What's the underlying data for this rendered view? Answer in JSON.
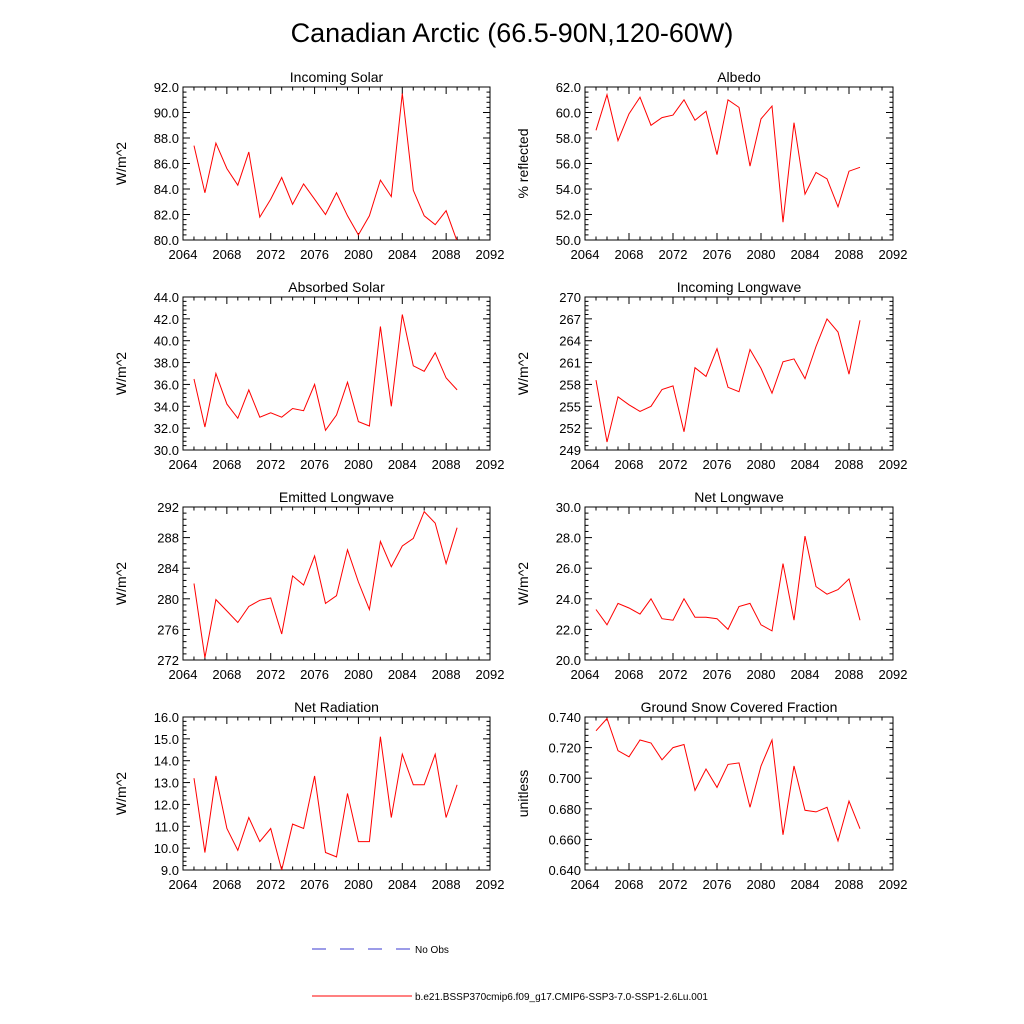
{
  "title": "Canadian Arctic (66.5-90N,120-60W)",
  "colors": {
    "model": "#ff0000",
    "obs": "#3a3ad0",
    "axis": "#000000"
  },
  "legend": {
    "obs_label": "No Obs",
    "model_label": "b.e21.BSSP370cmip6.f09_g17.CMIP6-SSP3-7.0-SSP1-2.6Lu.001"
  },
  "chart_data": [
    {
      "type": "line",
      "title": "Incoming Solar",
      "xlabel": "",
      "ylabel": "W/m^2",
      "xlim": [
        2064,
        2092
      ],
      "ylim": [
        80.0,
        92.0
      ],
      "xticks": [
        "2064",
        "2068",
        "2072",
        "2076",
        "2080",
        "2084",
        "2088",
        "2092"
      ],
      "yticks": [
        "80.0",
        "82.0",
        "84.0",
        "86.0",
        "88.0",
        "90.0",
        "92.0"
      ],
      "ytick_values": [
        80,
        82,
        84,
        86,
        88,
        90,
        92
      ],
      "x": [
        2065,
        2066,
        2067,
        2068,
        2069,
        2070,
        2071,
        2072,
        2073,
        2074,
        2075,
        2076,
        2077,
        2078,
        2079,
        2080,
        2081,
        2082,
        2083,
        2084,
        2085,
        2086,
        2087,
        2088,
        2089
      ],
      "series": [
        {
          "values": [
            87.4,
            83.7,
            87.6,
            85.6,
            84.3,
            86.9,
            81.8,
            83.2,
            84.9,
            82.8,
            84.4,
            83.2,
            82.0,
            83.7,
            81.9,
            80.4,
            81.9,
            84.7,
            83.4,
            91.5,
            83.9,
            81.9,
            81.2,
            82.3,
            79.9
          ]
        }
      ]
    },
    {
      "type": "line",
      "title": "Albedo",
      "xlabel": "",
      "ylabel": "% reflected",
      "xlim": [
        2064,
        2092
      ],
      "ylim": [
        50.0,
        62.0
      ],
      "xticks": [
        "2064",
        "2068",
        "2072",
        "2076",
        "2080",
        "2084",
        "2088",
        "2092"
      ],
      "yticks": [
        "50.0",
        "52.0",
        "54.0",
        "56.0",
        "58.0",
        "60.0",
        "62.0"
      ],
      "ytick_values": [
        50,
        52,
        54,
        56,
        58,
        60,
        62
      ],
      "x": [
        2065,
        2066,
        2067,
        2068,
        2069,
        2070,
        2071,
        2072,
        2073,
        2074,
        2075,
        2076,
        2077,
        2078,
        2079,
        2080,
        2081,
        2082,
        2083,
        2084,
        2085,
        2086,
        2087,
        2088,
        2089
      ],
      "series": [
        {
          "values": [
            58.6,
            61.4,
            57.8,
            59.9,
            61.2,
            59.0,
            59.6,
            59.8,
            61.0,
            59.4,
            60.1,
            56.7,
            61.0,
            60.4,
            55.8,
            59.5,
            60.5,
            51.4,
            59.2,
            53.6,
            55.3,
            54.8,
            52.6,
            55.4,
            55.7
          ]
        }
      ]
    },
    {
      "type": "line",
      "title": "Absorbed Solar",
      "xlabel": "",
      "ylabel": "W/m^2",
      "xlim": [
        2064,
        2092
      ],
      "ylim": [
        30.0,
        44.0
      ],
      "xticks": [
        "2064",
        "2068",
        "2072",
        "2076",
        "2080",
        "2084",
        "2088",
        "2092"
      ],
      "yticks": [
        "30.0",
        "32.0",
        "34.0",
        "36.0",
        "38.0",
        "40.0",
        "42.0",
        "44.0"
      ],
      "ytick_values": [
        30,
        32,
        34,
        36,
        38,
        40,
        42,
        44
      ],
      "x": [
        2065,
        2066,
        2067,
        2068,
        2069,
        2070,
        2071,
        2072,
        2073,
        2074,
        2075,
        2076,
        2077,
        2078,
        2079,
        2080,
        2081,
        2082,
        2083,
        2084,
        2085,
        2086,
        2087,
        2088,
        2089
      ],
      "series": [
        {
          "values": [
            36.5,
            32.1,
            37.0,
            34.2,
            32.9,
            35.5,
            33.0,
            33.4,
            33.0,
            33.8,
            33.6,
            36.0,
            31.8,
            33.2,
            36.2,
            32.6,
            32.2,
            41.3,
            34.0,
            42.4,
            37.7,
            37.2,
            38.9,
            36.6,
            35.5
          ]
        }
      ]
    },
    {
      "type": "line",
      "title": "Incoming Longwave",
      "xlabel": "",
      "ylabel": "W/m^2",
      "xlim": [
        2064,
        2092
      ],
      "ylim": [
        249,
        270
      ],
      "xticks": [
        "2064",
        "2068",
        "2072",
        "2076",
        "2080",
        "2084",
        "2088",
        "2092"
      ],
      "yticks": [
        "249",
        "252",
        "255",
        "258",
        "261",
        "264",
        "267",
        "270"
      ],
      "ytick_values": [
        249,
        252,
        255,
        258,
        261,
        264,
        267,
        270
      ],
      "x": [
        2065,
        2066,
        2067,
        2068,
        2069,
        2070,
        2071,
        2072,
        2073,
        2074,
        2075,
        2076,
        2077,
        2078,
        2079,
        2080,
        2081,
        2082,
        2083,
        2084,
        2085,
        2086,
        2087,
        2088,
        2089
      ],
      "series": [
        {
          "values": [
            258.6,
            250.1,
            256.3,
            255.2,
            254.3,
            255.0,
            257.3,
            257.8,
            251.5,
            260.3,
            259.1,
            262.9,
            257.6,
            257.0,
            262.8,
            260.2,
            256.8,
            261.1,
            261.5,
            258.8,
            263.2,
            267.0,
            265.2,
            259.4,
            266.8
          ]
        }
      ]
    },
    {
      "type": "line",
      "title": "Emitted Longwave",
      "xlabel": "",
      "ylabel": "W/m^2",
      "xlim": [
        2064,
        2092
      ],
      "ylim": [
        272,
        292
      ],
      "xticks": [
        "2064",
        "2068",
        "2072",
        "2076",
        "2080",
        "2084",
        "2088",
        "2092"
      ],
      "yticks": [
        "272",
        "276",
        "280",
        "284",
        "288",
        "292"
      ],
      "ytick_values": [
        272,
        276,
        280,
        284,
        288,
        292
      ],
      "x": [
        2065,
        2066,
        2067,
        2068,
        2069,
        2070,
        2071,
        2072,
        2073,
        2074,
        2075,
        2076,
        2077,
        2078,
        2079,
        2080,
        2081,
        2082,
        2083,
        2084,
        2085,
        2086,
        2087,
        2088,
        2089
      ],
      "series": [
        {
          "values": [
            282.0,
            272.3,
            279.9,
            278.4,
            276.9,
            279.0,
            279.8,
            280.1,
            275.4,
            283.0,
            281.8,
            285.6,
            279.4,
            280.4,
            286.4,
            282.2,
            278.6,
            287.5,
            284.2,
            286.9,
            287.9,
            291.4,
            289.9,
            284.6,
            289.3
          ]
        }
      ]
    },
    {
      "type": "line",
      "title": "Net Longwave",
      "xlabel": "",
      "ylabel": "W/m^2",
      "xlim": [
        2064,
        2092
      ],
      "ylim": [
        20.0,
        30.0
      ],
      "xticks": [
        "2064",
        "2068",
        "2072",
        "2076",
        "2080",
        "2084",
        "2088",
        "2092"
      ],
      "yticks": [
        "20.0",
        "22.0",
        "24.0",
        "26.0",
        "28.0",
        "30.0"
      ],
      "ytick_values": [
        20,
        22,
        24,
        26,
        28,
        30
      ],
      "x": [
        2065,
        2066,
        2067,
        2068,
        2069,
        2070,
        2071,
        2072,
        2073,
        2074,
        2075,
        2076,
        2077,
        2078,
        2079,
        2080,
        2081,
        2082,
        2083,
        2084,
        2085,
        2086,
        2087,
        2088,
        2089
      ],
      "series": [
        {
          "values": [
            23.3,
            22.3,
            23.7,
            23.4,
            23.0,
            24.0,
            22.7,
            22.6,
            24.0,
            22.8,
            22.8,
            22.7,
            22.0,
            23.5,
            23.7,
            22.3,
            21.9,
            26.3,
            22.6,
            28.1,
            24.8,
            24.3,
            24.6,
            25.3,
            22.6
          ]
        }
      ]
    },
    {
      "type": "line",
      "title": "Net Radiation",
      "xlabel": "",
      "ylabel": "W/m^2",
      "xlim": [
        2064,
        2092
      ],
      "ylim": [
        9.0,
        16.0
      ],
      "xticks": [
        "2064",
        "2068",
        "2072",
        "2076",
        "2080",
        "2084",
        "2088",
        "2092"
      ],
      "yticks": [
        "9.0",
        "10.0",
        "11.0",
        "12.0",
        "13.0",
        "14.0",
        "15.0",
        "16.0"
      ],
      "ytick_values": [
        9,
        10,
        11,
        12,
        13,
        14,
        15,
        16
      ],
      "x": [
        2065,
        2066,
        2067,
        2068,
        2069,
        2070,
        2071,
        2072,
        2073,
        2074,
        2075,
        2076,
        2077,
        2078,
        2079,
        2080,
        2081,
        2082,
        2083,
        2084,
        2085,
        2086,
        2087,
        2088,
        2089
      ],
      "series": [
        {
          "values": [
            13.2,
            9.8,
            13.3,
            10.9,
            9.9,
            11.4,
            10.3,
            10.9,
            9.0,
            11.1,
            10.9,
            13.3,
            9.8,
            9.6,
            12.5,
            10.3,
            10.3,
            15.1,
            11.4,
            14.3,
            12.9,
            12.9,
            14.3,
            11.4,
            12.9
          ]
        }
      ]
    },
    {
      "type": "line",
      "title": "Ground Snow Covered Fraction",
      "xlabel": "",
      "ylabel": "unitless",
      "xlim": [
        2064,
        2092
      ],
      "ylim": [
        0.64,
        0.74
      ],
      "xticks": [
        "2064",
        "2068",
        "2072",
        "2076",
        "2080",
        "2084",
        "2088",
        "2092"
      ],
      "yticks": [
        "0.640",
        "0.660",
        "0.680",
        "0.700",
        "0.720",
        "0.740"
      ],
      "ytick_values": [
        0.64,
        0.66,
        0.68,
        0.7,
        0.72,
        0.74
      ],
      "x": [
        2065,
        2066,
        2067,
        2068,
        2069,
        2070,
        2071,
        2072,
        2073,
        2074,
        2075,
        2076,
        2077,
        2078,
        2079,
        2080,
        2081,
        2082,
        2083,
        2084,
        2085,
        2086,
        2087,
        2088,
        2089
      ],
      "series": [
        {
          "values": [
            0.731,
            0.739,
            0.718,
            0.714,
            0.725,
            0.723,
            0.712,
            0.72,
            0.722,
            0.692,
            0.706,
            0.694,
            0.709,
            0.71,
            0.681,
            0.708,
            0.725,
            0.663,
            0.708,
            0.679,
            0.678,
            0.681,
            0.659,
            0.685,
            0.667
          ]
        }
      ]
    }
  ]
}
